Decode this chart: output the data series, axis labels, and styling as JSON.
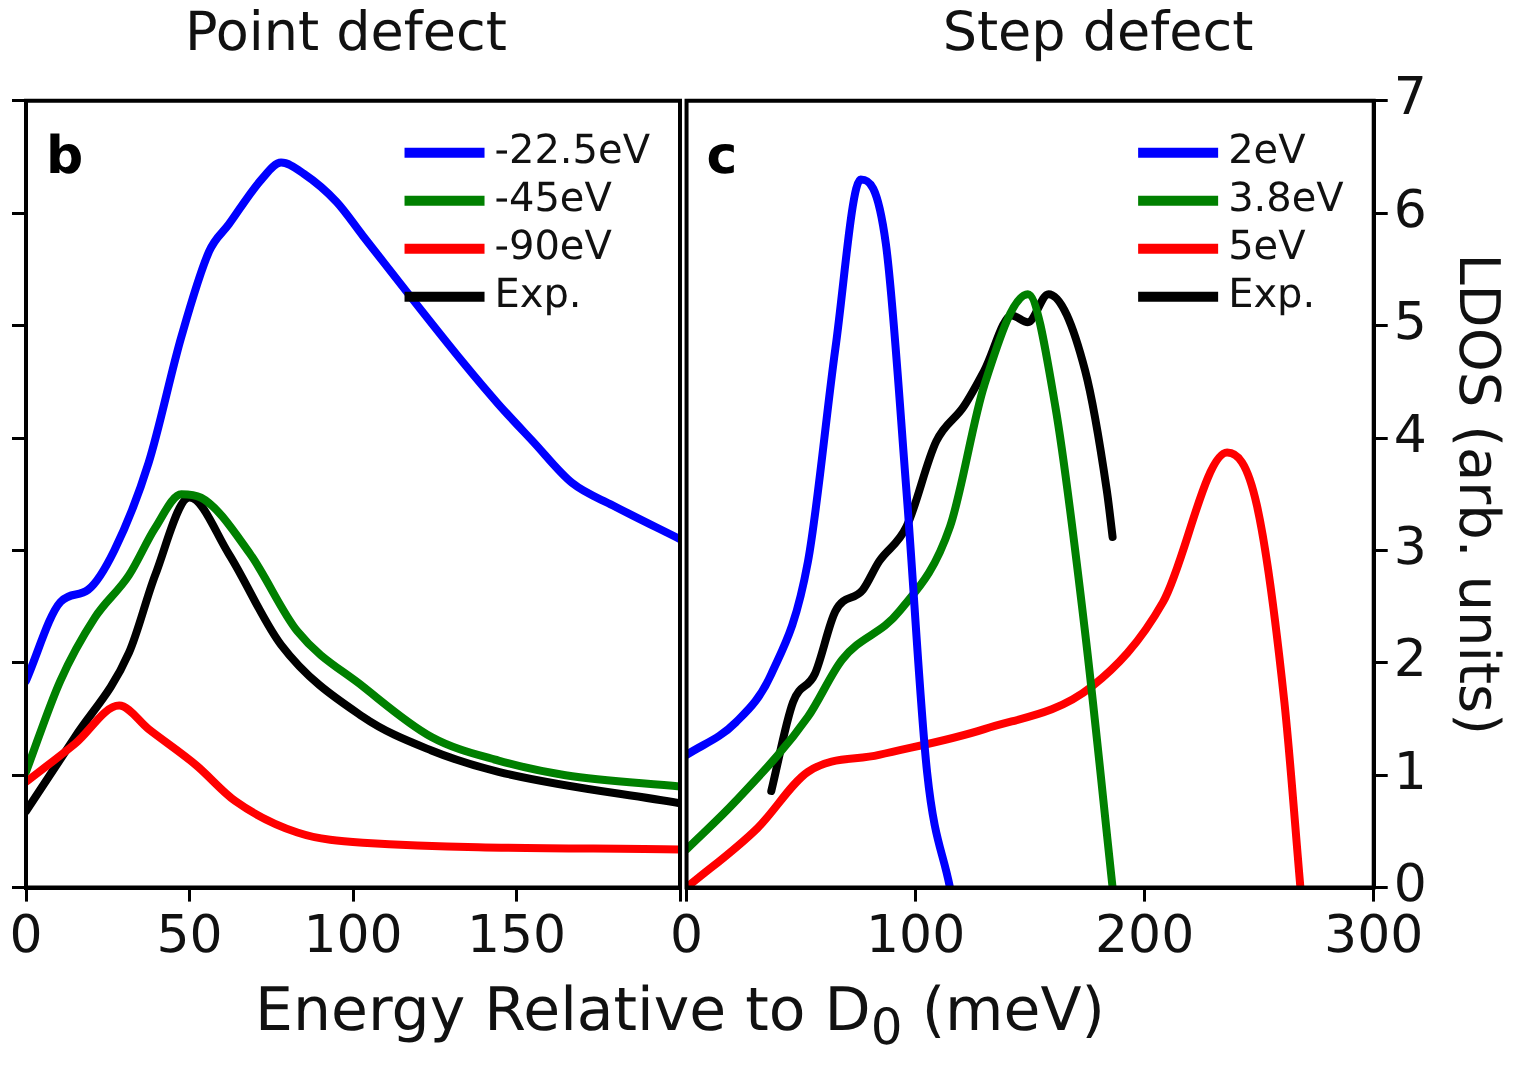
{
  "chart_data": [
    {
      "type": "line",
      "title": "Point defect",
      "xlabel": "Energy Relative to D$_{0}$ (meV)",
      "annotations": [
        "b"
      ],
      "xlim": [
        0,
        200
      ],
      "xticks": [
        0,
        50,
        100,
        150,
        {
          "value": 200,
          "label": null
        }
      ],
      "ylim": [
        0,
        7
      ],
      "yticks": [
        0,
        1,
        2,
        3,
        4,
        5,
        6,
        7
      ],
      "tick_labels": "x",
      "legend": "top right",
      "series": [
        {
          "name": "-22.5eV",
          "color": "#0000ff",
          "x": [
            0,
            10.5,
            19,
            27,
            37.5,
            47.5,
            56,
            62,
            72,
            78,
            85,
            95,
            103,
            134,
            144.5,
            155,
            167,
            179.5,
            200
          ],
          "values": [
            1.84,
            2.54,
            2.65,
            3.0,
            3.78,
            4.9,
            5.66,
            5.9,
            6.3,
            6.45,
            6.35,
            6.1,
            5.8,
            4.66,
            4.3,
            3.97,
            3.6,
            3.4,
            3.1
          ]
        },
        {
          "name": "-45eV",
          "color": "#008000",
          "x": [
            0,
            10.5,
            21,
            31.5,
            39.5,
            47.5,
            53.5,
            68.5,
            83,
            103,
            124,
            144.5,
            165,
            200
          ],
          "values": [
            1.03,
            1.84,
            2.4,
            2.78,
            3.2,
            3.5,
            3.47,
            2.97,
            2.28,
            1.79,
            1.34,
            1.13,
            1.0,
            0.9
          ]
        },
        {
          "name": "-90eV",
          "color": "#ff0000",
          "x": [
            0,
            15,
            28.5,
            37.5,
            52,
            64,
            83,
            103,
            200
          ],
          "values": [
            0.94,
            1.28,
            1.62,
            1.41,
            1.09,
            0.77,
            0.49,
            0.4,
            0.34
          ]
        },
        {
          "name": "Exp.",
          "color": "#000000",
          "x": [
            0,
            15,
            31.5,
            39.5,
            50,
            62,
            78,
            103,
            124,
            144.5,
            200
          ],
          "values": [
            0.68,
            1.34,
            2.09,
            2.78,
            3.47,
            2.97,
            2.16,
            1.52,
            1.22,
            1.03,
            0.75
          ]
        }
      ]
    },
    {
      "type": "line",
      "title": "Step defect",
      "ylabel": "LDOS (arb. units)",
      "annotations": [
        "c"
      ],
      "xlim": [
        0,
        300
      ],
      "xticks": [
        0,
        100,
        200,
        300
      ],
      "ylim": [
        0,
        7
      ],
      "yticks": [
        0,
        1,
        2,
        3,
        4,
        5,
        6,
        7
      ],
      "legend": "top right",
      "series": [
        {
          "name": "2eV",
          "color": "#0000ff",
          "x": [
            0,
            21.5,
            37,
            53,
            65,
            76,
            87,
            96,
            105,
            115
          ],
          "values": [
            1.18,
            1.47,
            1.9,
            2.9,
            4.8,
            6.3,
            5.73,
            3.53,
            1.03,
            0
          ]
        },
        {
          "name": "3.8eV",
          "color": "#008000",
          "x": [
            0,
            21.5,
            53,
            68,
            93,
            115,
            130,
            149,
            161,
            174,
            186
          ],
          "values": [
            0.34,
            0.77,
            1.52,
            2.03,
            2.46,
            3.21,
            4.47,
            5.28,
            4.28,
            2.27,
            0
          ]
        },
        {
          "name": "5eV",
          "color": "#ff0000",
          "x": [
            0,
            31,
            53,
            84,
            130,
            177,
            208,
            236,
            249,
            261,
            268
          ],
          "values": [
            0,
            0.53,
            1.03,
            1.18,
            1.41,
            1.79,
            2.54,
            3.87,
            3.4,
            1.65,
            0
          ]
        },
        {
          "name": "Exp.",
          "color": "#000000",
          "x": [
            37,
            46.5,
            56,
            65,
            77,
            84,
            96,
            109,
            121,
            130,
            142,
            149,
            158,
            174,
            183.5,
            186
          ],
          "values": [
            0.86,
            1.65,
            1.9,
            2.46,
            2.65,
            2.9,
            3.21,
            3.97,
            4.28,
            4.6,
            5.09,
            5.03,
            5.28,
            4.6,
            3.53,
            3.12
          ]
        }
      ]
    }
  ]
}
